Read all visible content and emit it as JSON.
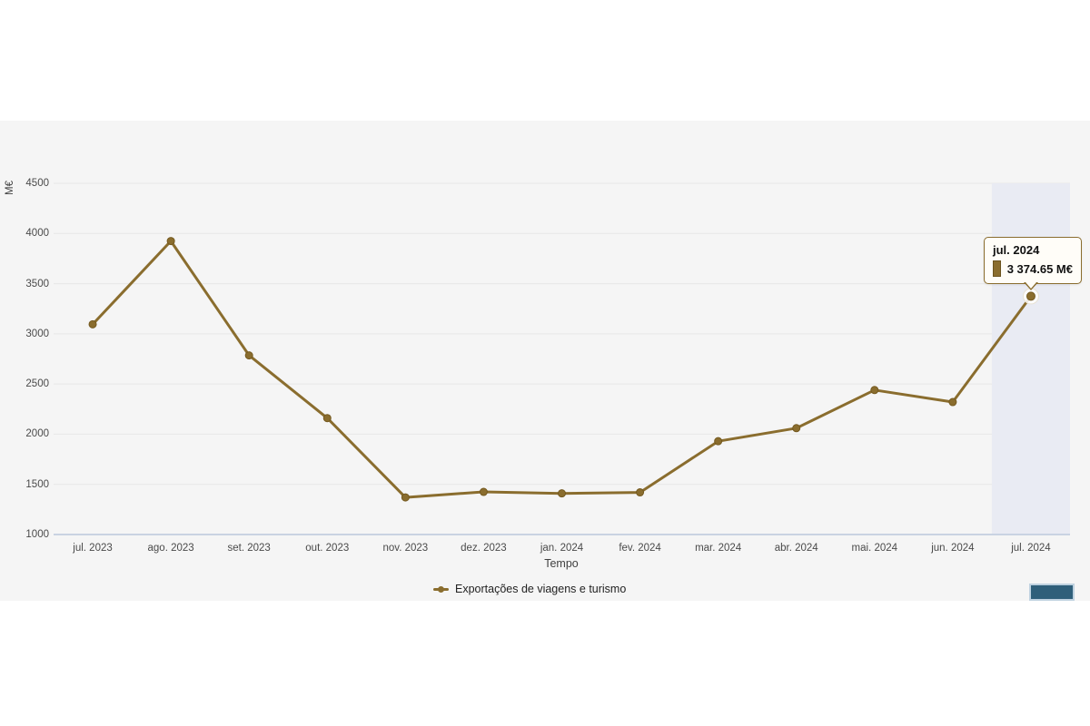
{
  "chart": {
    "ylabel": "M€",
    "xlabel": "Tempo",
    "legend": {
      "label": "Exportações de viagens e turismo"
    },
    "tooltip": {
      "title": "jul. 2024",
      "value": "3 374.65 M€"
    }
  },
  "chart_data": {
    "type": "line",
    "categories": [
      "jul. 2023",
      "ago. 2023",
      "set. 2023",
      "out. 2023",
      "nov. 2023",
      "dez. 2023",
      "jan. 2024",
      "fev. 2024",
      "mar. 2024",
      "abr. 2024",
      "mai. 2024",
      "jun. 2024",
      "jul. 2024"
    ],
    "series": [
      {
        "name": "Exportações de viagens e turismo",
        "values": [
          3095,
          3925,
          2785,
          2160,
          1370,
          1425,
          1410,
          1420,
          1930,
          2060,
          2440,
          2320,
          3374.65
        ]
      }
    ],
    "title": "",
    "xlabel": "Tempo",
    "ylabel": "M€",
    "ylim": [
      1000,
      4500
    ],
    "y_ticks": [
      1000,
      1500,
      2000,
      2500,
      3000,
      3500,
      4000,
      4500
    ],
    "grid": true,
    "legend_position": "bottom",
    "highlighted_index": 12,
    "highlighted_label": "jul. 2024",
    "highlighted_value_text": "3 374.65 M€",
    "colors": {
      "series": "#8a6d2e",
      "series_marker_edge": "#74591f",
      "highlight_band": "#e9ebf3",
      "axis_line": "#c9d3e2",
      "gridline": "#e7e7e7",
      "panel_bg": "#f5f5f5",
      "text": "#4a4a4a",
      "tooltip_bg": "#fffdf8",
      "control_button": "#2f5f7a"
    }
  }
}
